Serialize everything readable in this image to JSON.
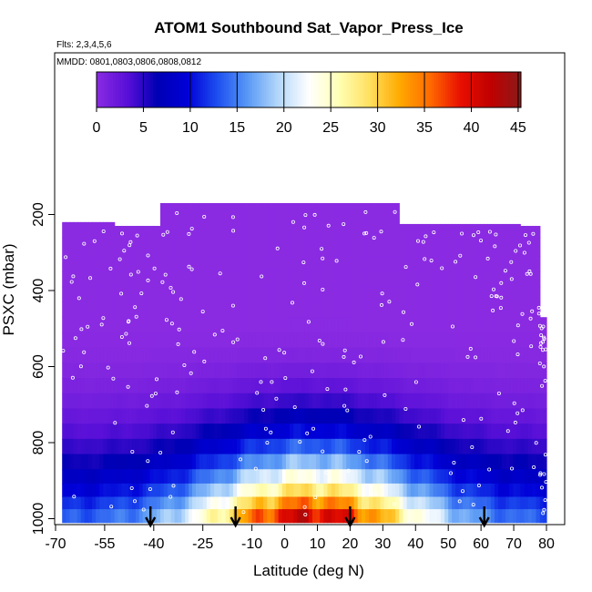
{
  "chart_data": {
    "type": "heatmap",
    "title": "ATOM1 Southbound Sat_Vapor_Press_Ice",
    "subtitle_flights": "Flts: 2,3,4,5,6",
    "subtitle_dates": "MMDD: 0801,0803,0806,0808,0812",
    "xlabel": "Latitude (deg N)",
    "ylabel": "PSXC (mbar)",
    "xlim": [
      -70,
      82
    ],
    "ylim_pressure": [
      1010,
      130
    ],
    "x_ticks": [
      -70,
      -55,
      -40,
      -25,
      -10,
      0,
      10,
      20,
      30,
      40,
      50,
      60,
      70,
      80
    ],
    "y_ticks": [
      200,
      400,
      600,
      800,
      1000
    ],
    "colorbar": {
      "min": 0,
      "max": 45.3,
      "ticks": [
        0,
        5,
        10,
        15,
        20,
        25,
        30,
        35,
        40,
        45
      ],
      "colors": [
        "#8a2be2",
        "#5a10d8",
        "#0000b4",
        "#0000d8",
        "#1e50f0",
        "#5a9af5",
        "#b4d8fa",
        "#ffffff",
        "#ffffb4",
        "#ffe060",
        "#ffaa00",
        "#ff6a00",
        "#e81000",
        "#c00000",
        "#8b1a1a"
      ]
    },
    "pressure_levels": [
      230,
      290,
      330,
      370,
      410,
      450,
      490,
      530,
      570,
      610,
      650,
      690,
      730,
      770,
      810,
      850,
      890,
      925,
      960,
      990
    ],
    "field_peak_value": 45,
    "profile_markers_lat": [
      -41,
      -15,
      20,
      61
    ],
    "panels": [
      {
        "lat_start": -68,
        "lat_end": -52,
        "ptop": 220
      },
      {
        "lat_start": -52,
        "lat_end": -38,
        "ptop": 230
      },
      {
        "lat_start": -38,
        "lat_end": -25,
        "ptop": 170
      },
      {
        "lat_start": -25,
        "lat_end": -10,
        "ptop": 170
      },
      {
        "lat_start": -10,
        "lat_end": 5,
        "ptop": 170
      },
      {
        "lat_start": 5,
        "lat_end": 20,
        "ptop": 170
      },
      {
        "lat_start": 20,
        "lat_end": 35,
        "ptop": 170
      },
      {
        "lat_start": 35,
        "lat_end": 50,
        "ptop": 225
      },
      {
        "lat_start": 50,
        "lat_end": 63,
        "ptop": 225
      },
      {
        "lat_start": 63,
        "lat_end": 72,
        "ptop": 225
      },
      {
        "lat_start": 72,
        "lat_end": 78,
        "ptop": 230
      },
      {
        "lat_start": 78,
        "lat_end": 80,
        "ptop": 470
      }
    ]
  }
}
